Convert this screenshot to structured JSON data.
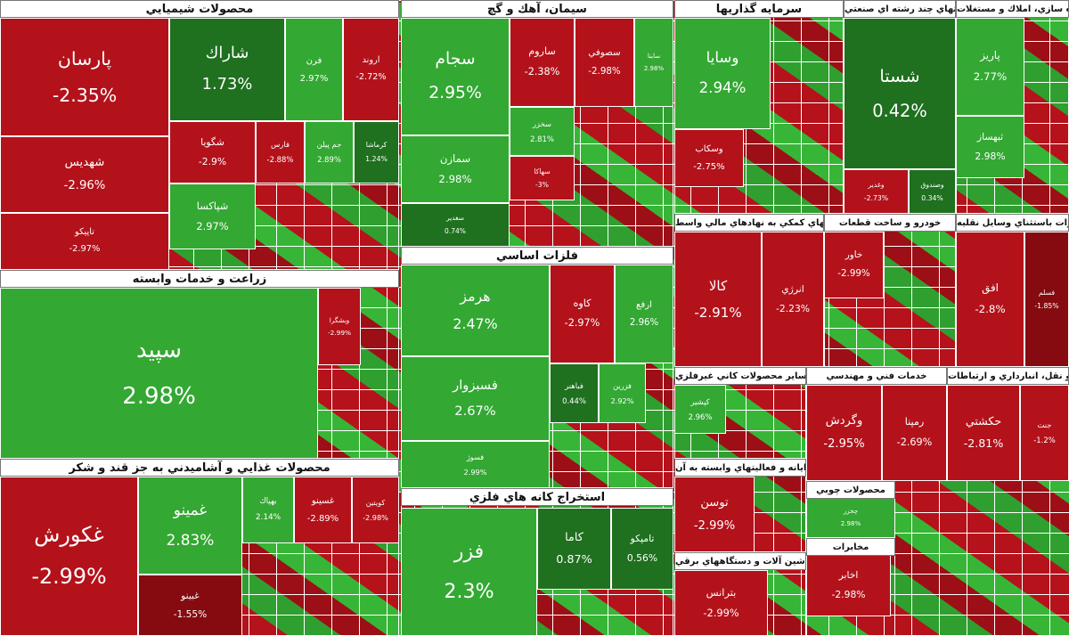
{
  "sectors": [
    {
      "title": "محصولات شيميايي",
      "tiles": [
        {
          "name": "پارسان",
          "change": "-2.35%"
        },
        {
          "name": "شهديس",
          "change": "-2.96%"
        },
        {
          "name": "تاپيكو",
          "change": "-2.97%"
        },
        {
          "name": "شاراك",
          "change": "1.73%"
        },
        {
          "name": "فرن",
          "change": "2.97%"
        },
        {
          "name": "اروند",
          "change": "-2.72%"
        },
        {
          "name": "شگويا",
          "change": "-2.9%"
        },
        {
          "name": "فارس",
          "change": "-2.88%"
        },
        {
          "name": "جم پيلن",
          "change": "2.89%"
        },
        {
          "name": "كرماشا",
          "change": "1.24%"
        },
        {
          "name": "شپاكسا",
          "change": "2.97%"
        }
      ]
    },
    {
      "title": "زراعت و خدمات وابسته",
      "tiles": [
        {
          "name": "سپيد",
          "change": "2.98%"
        },
        {
          "name": "وبشگرا",
          "change": "-2.99%"
        }
      ]
    },
    {
      "title": "محصولات غذايي و آشاميدني به جز قند و شكر",
      "tiles": [
        {
          "name": "غكورش",
          "change": "-2.99%"
        },
        {
          "name": "غمينو",
          "change": "2.83%"
        },
        {
          "name": "غبينو",
          "change": "-1.55%"
        },
        {
          "name": "بهپاك",
          "change": "2.14%"
        },
        {
          "name": "غسينو",
          "change": "-2.89%"
        },
        {
          "name": "كويتين",
          "change": "-2.98%"
        }
      ]
    },
    {
      "title": "سيمان، آهك و گچ",
      "tiles": [
        {
          "name": "سجام",
          "change": "2.95%"
        },
        {
          "name": "سمازن",
          "change": "2.98%"
        },
        {
          "name": "سغدير",
          "change": "0.74%"
        },
        {
          "name": "ساروم",
          "change": "-2.38%"
        },
        {
          "name": "سصوفي",
          "change": "-2.98%"
        },
        {
          "name": "ساينا",
          "change": "2.98%"
        },
        {
          "name": "سخزر",
          "change": "2.81%"
        },
        {
          "name": "سهاكا",
          "change": "-3%"
        }
      ]
    },
    {
      "title": "فلزات اساسي",
      "tiles": [
        {
          "name": "هرمز",
          "change": "2.47%"
        },
        {
          "name": "فسبزوار",
          "change": "2.67%"
        },
        {
          "name": "فسوژ",
          "change": "2.99%"
        },
        {
          "name": "كاوه",
          "change": "-2.97%"
        },
        {
          "name": "ارفع",
          "change": "2.96%"
        },
        {
          "name": "فباهنر",
          "change": "0.44%"
        },
        {
          "name": "فزرين",
          "change": "2.92%"
        }
      ]
    },
    {
      "title": "استخراج كانه هاي فلزي",
      "tiles": [
        {
          "name": "فزر",
          "change": "2.3%"
        },
        {
          "name": "كاما",
          "change": "0.87%"
        },
        {
          "name": "تامپكو",
          "change": "0.56%"
        }
      ]
    },
    {
      "title": "سرمايه گذاريها",
      "tiles": [
        {
          "name": "وسايا",
          "change": "2.94%"
        },
        {
          "name": "وسكاب",
          "change": "-2.75%"
        }
      ]
    },
    {
      "title": "شركتهاي چند رشته اي صنعتي",
      "tiles": [
        {
          "name": "شستا",
          "change": "0.42%"
        },
        {
          "name": "وغدير",
          "change": "-2.73%"
        },
        {
          "name": "وصندوق",
          "change": "0.34%"
        }
      ]
    },
    {
      "title": "انبوه سازي، املاك و مستغلات",
      "tiles": [
        {
          "name": "پاريز",
          "change": "2.77%"
        },
        {
          "name": "ثبهساز",
          "change": "2.98%"
        }
      ]
    },
    {
      "title": "فعاليتهاي كمكي به نهادهاي مالي واسط",
      "tiles": [
        {
          "name": "كالا",
          "change": "-2.91%"
        },
        {
          "name": "انرژي",
          "change": "-2.23%"
        }
      ]
    },
    {
      "title": "خودرو و ساخت قطعات",
      "tiles": [
        {
          "name": "خاور",
          "change": "-2.99%"
        }
      ]
    },
    {
      "title": "ماشين آلات و تجهيزات باستثناي وسايل نقليه",
      "tiles": [
        {
          "name": "افق",
          "change": "-2.8%"
        },
        {
          "name": "فسلم",
          "change": "-1.85%"
        }
      ]
    },
    {
      "title": "ساير محصولات كاني غيرفلزي",
      "tiles": [
        {
          "name": "كپشير",
          "change": "2.96%"
        }
      ]
    },
    {
      "title": "رايانه و فعاليتهاي وابسته به آن",
      "tiles": [
        {
          "name": "توسن",
          "change": "-2.99%"
        }
      ]
    },
    {
      "title": "ماشين آلات و دستگاههاي برقي",
      "tiles": [
        {
          "name": "بترانس",
          "change": "-2.99%"
        }
      ]
    },
    {
      "title": "خدمات فني و مهندسي",
      "tiles": [
        {
          "name": "وگردش",
          "change": "-2.95%"
        },
        {
          "name": "رمپنا",
          "change": "-2.69%"
        }
      ]
    },
    {
      "title": "حمل و نقل، انبارداري و ارتباطات",
      "tiles": [
        {
          "name": "حكشتي",
          "change": "-2.81%"
        },
        {
          "name": "جنت",
          "change": "-1.2%"
        }
      ]
    },
    {
      "title": "محصولات چوبي",
      "tiles": [
        {
          "name": "چخزر",
          "change": "2.98%"
        }
      ]
    },
    {
      "title": "مخابرات",
      "tiles": [
        {
          "name": "اخابر",
          "change": "-2.98%"
        }
      ]
    }
  ]
}
